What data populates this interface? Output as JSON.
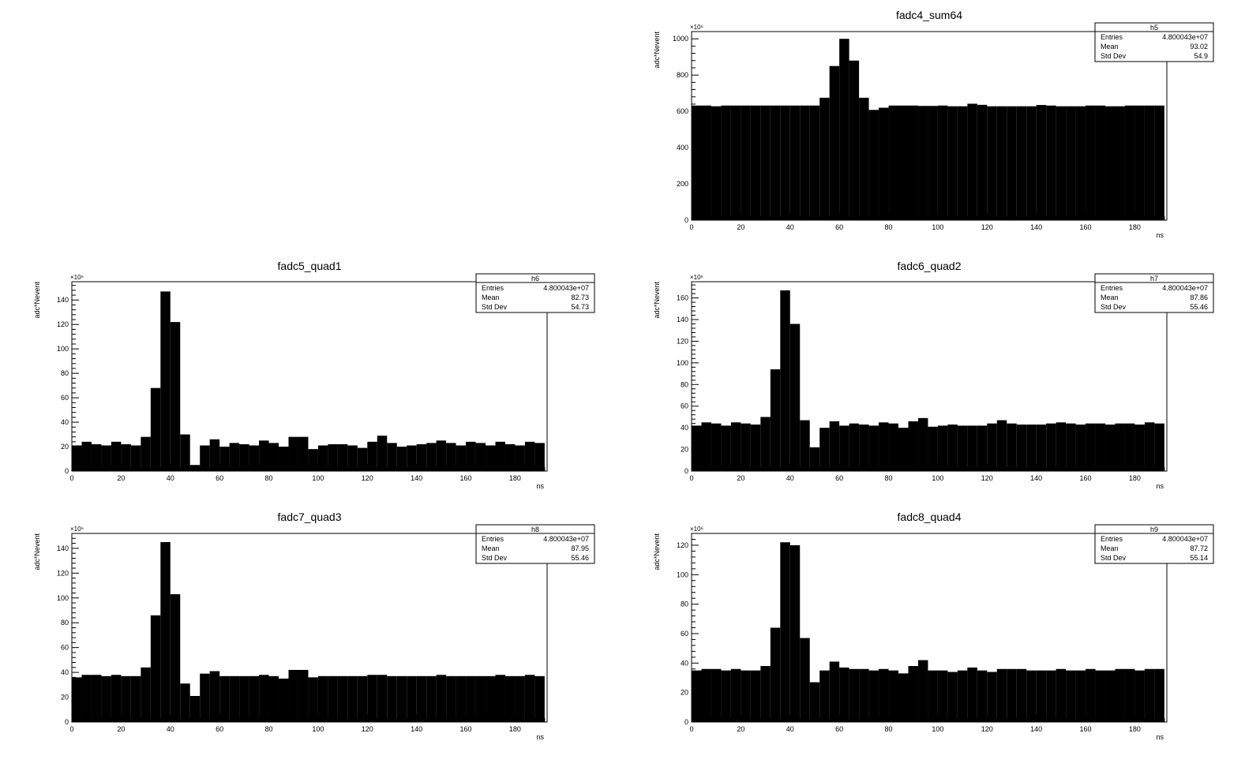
{
  "chart_data": [
    {
      "type": "bar",
      "title": "fadc4_sum64",
      "xlabel": "ns",
      "ylabel": "adc*Nevent",
      "y_multiplier": "×10⁶",
      "xlim": [
        0,
        193
      ],
      "ylim": [
        0,
        1040
      ],
      "x_ticks": [
        0,
        20,
        40,
        60,
        80,
        100,
        120,
        140,
        160,
        180
      ],
      "y_ticks": [
        0,
        200,
        400,
        600,
        800,
        1000
      ],
      "bin_width": 4,
      "values": [
        632,
        632,
        628,
        632,
        632,
        632,
        632,
        632,
        632,
        632,
        632,
        632,
        632,
        675,
        850,
        1000,
        880,
        675,
        608,
        620,
        632,
        632,
        632,
        630,
        630,
        632,
        628,
        628,
        642,
        636,
        628,
        628,
        628,
        628,
        628,
        635,
        632,
        628,
        628,
        628,
        632,
        632,
        628,
        628,
        632,
        632,
        632,
        632
      ],
      "stats": {
        "name": "h5",
        "rows": [
          [
            "Entries",
            "4.800043e+07"
          ],
          [
            "Mean",
            "93.02"
          ],
          [
            "Std Dev",
            "54.9"
          ]
        ]
      }
    },
    {
      "type": "bar",
      "title": "fadc5_quad1",
      "xlabel": "ns",
      "ylabel": "adc*Nevent",
      "y_multiplier": "×10⁶",
      "xlim": [
        0,
        193
      ],
      "ylim": [
        0,
        155
      ],
      "x_ticks": [
        0,
        20,
        40,
        60,
        80,
        100,
        120,
        140,
        160,
        180
      ],
      "y_ticks": [
        0,
        20,
        40,
        60,
        80,
        100,
        120,
        140
      ],
      "bin_width": 4,
      "values": [
        21,
        24,
        22,
        21,
        24,
        22,
        21,
        28,
        68,
        147,
        122,
        30,
        5,
        21,
        26,
        20,
        23,
        22,
        21,
        25,
        23,
        20,
        28,
        28,
        18,
        21,
        22,
        22,
        21,
        19,
        24,
        29,
        23,
        20,
        21,
        22,
        23,
        25,
        23,
        21,
        24,
        23,
        21,
        24,
        22,
        21,
        24,
        23
      ],
      "stats": {
        "name": "h6",
        "rows": [
          [
            "Entries",
            "4.800043e+07"
          ],
          [
            "Mean",
            "82.73"
          ],
          [
            "Std Dev",
            "54.73"
          ]
        ]
      }
    },
    {
      "type": "bar",
      "title": "fadc6_quad2",
      "xlabel": "ns",
      "ylabel": "adc*Nevent",
      "y_multiplier": "×10⁶",
      "xlim": [
        0,
        193
      ],
      "ylim": [
        0,
        175
      ],
      "x_ticks": [
        0,
        20,
        40,
        60,
        80,
        100,
        120,
        140,
        160,
        180
      ],
      "y_ticks": [
        0,
        20,
        40,
        60,
        80,
        100,
        120,
        140,
        160
      ],
      "bin_width": 4,
      "values": [
        42,
        45,
        44,
        42,
        45,
        44,
        43,
        50,
        94,
        167,
        136,
        47,
        22,
        40,
        46,
        42,
        44,
        43,
        42,
        45,
        44,
        40,
        46,
        49,
        41,
        42,
        43,
        42,
        42,
        42,
        44,
        47,
        44,
        43,
        43,
        43,
        44,
        45,
        44,
        43,
        44,
        44,
        43,
        44,
        44,
        43,
        45,
        44
      ],
      "stats": {
        "name": "h7",
        "rows": [
          [
            "Entries",
            "4.800043e+07"
          ],
          [
            "Mean",
            "87.86"
          ],
          [
            "Std Dev",
            "55.46"
          ]
        ]
      }
    },
    {
      "type": "bar",
      "title": "fadc7_quad3",
      "xlabel": "ns",
      "ylabel": "adc*Nevent",
      "y_multiplier": "×10⁶",
      "xlim": [
        0,
        193
      ],
      "ylim": [
        0,
        152
      ],
      "x_ticks": [
        0,
        20,
        40,
        60,
        80,
        100,
        120,
        140,
        160,
        180
      ],
      "y_ticks": [
        0,
        20,
        40,
        60,
        80,
        100,
        120,
        140
      ],
      "bin_width": 4,
      "values": [
        36,
        38,
        38,
        37,
        38,
        37,
        37,
        44,
        86,
        145,
        103,
        31,
        21,
        39,
        41,
        37,
        37,
        37,
        37,
        38,
        37,
        35,
        42,
        42,
        36,
        37,
        37,
        37,
        37,
        37,
        38,
        38,
        37,
        37,
        37,
        37,
        37,
        38,
        37,
        37,
        37,
        37,
        37,
        38,
        37,
        37,
        38,
        37
      ],
      "stats": {
        "name": "h8",
        "rows": [
          [
            "Entries",
            "4.800043e+07"
          ],
          [
            "Mean",
            "87.95"
          ],
          [
            "Std Dev",
            "55.46"
          ]
        ]
      }
    },
    {
      "type": "bar",
      "title": "fadc8_quad4",
      "xlabel": "ns",
      "ylabel": "adc*Nevent",
      "y_multiplier": "×10⁶",
      "xlim": [
        0,
        193
      ],
      "ylim": [
        0,
        128
      ],
      "x_ticks": [
        0,
        20,
        40,
        60,
        80,
        100,
        120,
        140,
        160,
        180
      ],
      "y_ticks": [
        0,
        20,
        40,
        60,
        80,
        100,
        120
      ],
      "bin_width": 4,
      "values": [
        35,
        36,
        36,
        35,
        36,
        35,
        35,
        38,
        64,
        122,
        120,
        57,
        27,
        35,
        41,
        37,
        36,
        36,
        35,
        36,
        35,
        33,
        38,
        42,
        35,
        35,
        34,
        35,
        37,
        35,
        34,
        36,
        36,
        36,
        35,
        35,
        35,
        36,
        35,
        35,
        36,
        35,
        35,
        36,
        36,
        35,
        36,
        36
      ],
      "stats": {
        "name": "h9",
        "rows": [
          [
            "Entries",
            "4.800043e+07"
          ],
          [
            "Mean",
            "87.72"
          ],
          [
            "Std Dev",
            "55.14"
          ]
        ]
      }
    }
  ]
}
